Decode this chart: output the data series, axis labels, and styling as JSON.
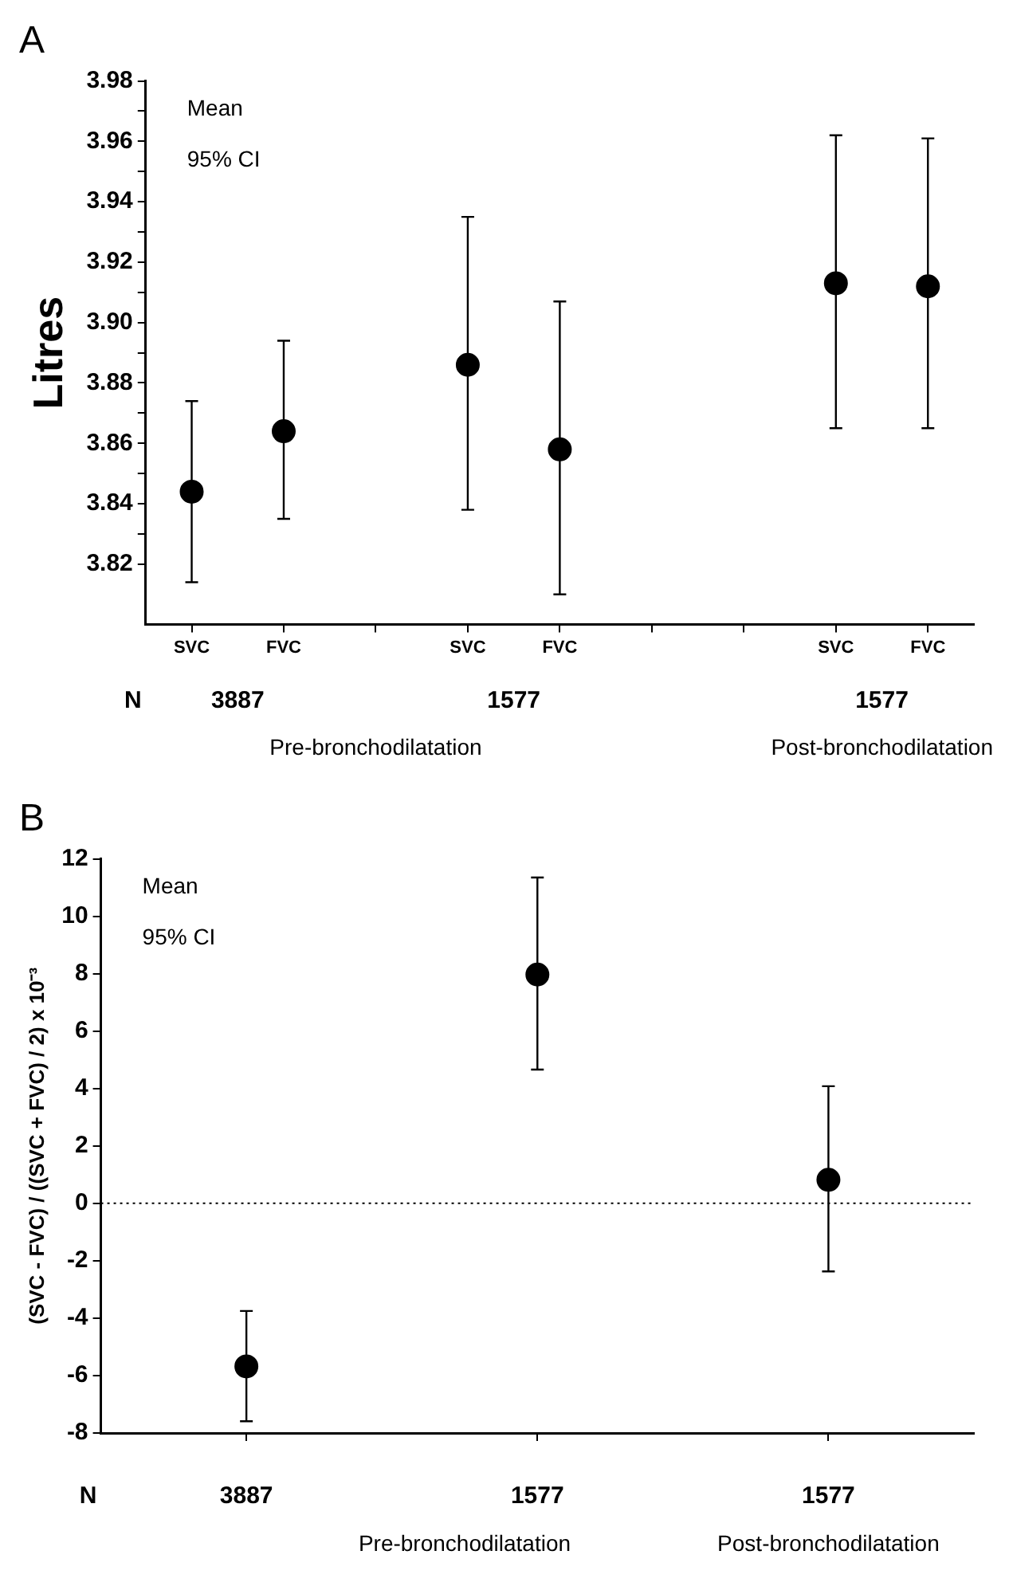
{
  "chart_data": [
    {
      "type": "scatter",
      "title": "A",
      "ylabel": "Litres",
      "categories": [
        "SVC",
        "FVC",
        null,
        "SVC",
        "FVC",
        null,
        null,
        "SVC",
        "FVC"
      ],
      "values": [
        3.844,
        3.864,
        null,
        3.886,
        3.858,
        null,
        null,
        3.913,
        3.912
      ],
      "errors": [
        [
          3.814,
          3.874
        ],
        [
          3.835,
          3.894
        ],
        null,
        [
          3.838,
          3.935
        ],
        [
          3.81,
          3.907
        ],
        null,
        null,
        [
          3.865,
          3.962
        ],
        [
          3.865,
          3.961
        ]
      ],
      "color": "#000000",
      "marker": "circle",
      "ylim": [
        3.8,
        3.98
      ],
      "yticks": [
        3.82,
        {
          "value": 3.83,
          "label": null
        },
        3.84,
        {
          "value": 3.85,
          "label": null
        },
        3.86,
        {
          "value": 3.87,
          "label": null
        },
        3.88,
        {
          "value": 3.89,
          "label": null
        },
        {
          "value": 3.9,
          "label": "3.90"
        },
        {
          "value": 3.91,
          "label": null
        },
        3.92,
        {
          "value": 3.93,
          "label": null
        },
        3.94,
        {
          "value": 3.95,
          "label": null
        },
        3.96,
        {
          "value": 3.97,
          "label": null
        },
        3.98
      ],
      "annotations": [
        "Mean",
        "95% CI",
        "N",
        "3887",
        "1577",
        "1577",
        "Pre-bronchodilatation",
        "Post-bronchodilatation"
      ]
    },
    {
      "type": "scatter",
      "title": "B",
      "ylabel": "(SVC - FVC) / ((SVC + FVC) / 2) x 10⁻³",
      "categories": [
        null,
        null,
        null
      ],
      "values": [
        -5.68,
        7.97,
        0.82
      ],
      "errors": [
        [
          -7.59,
          -3.75
        ],
        [
          4.66,
          11.35
        ],
        [
          -2.37,
          4.08
        ]
      ],
      "color": "#000000",
      "marker": "circle",
      "ylim": [
        -8,
        12
      ],
      "yticks": [
        -8,
        -6,
        -4,
        -2,
        0,
        2,
        4,
        6,
        8,
        10,
        12
      ],
      "tick_labels": "y",
      "ref_lines": [
        {
          "axis": "y",
          "value": 0,
          "line_style": "dotted",
          "color": "#000000"
        }
      ],
      "annotations": [
        "Mean",
        "95% CI",
        "N",
        "3887",
        "1577",
        "1577",
        "Pre-bronchodilatation",
        "Post-bronchodilatation"
      ]
    }
  ]
}
